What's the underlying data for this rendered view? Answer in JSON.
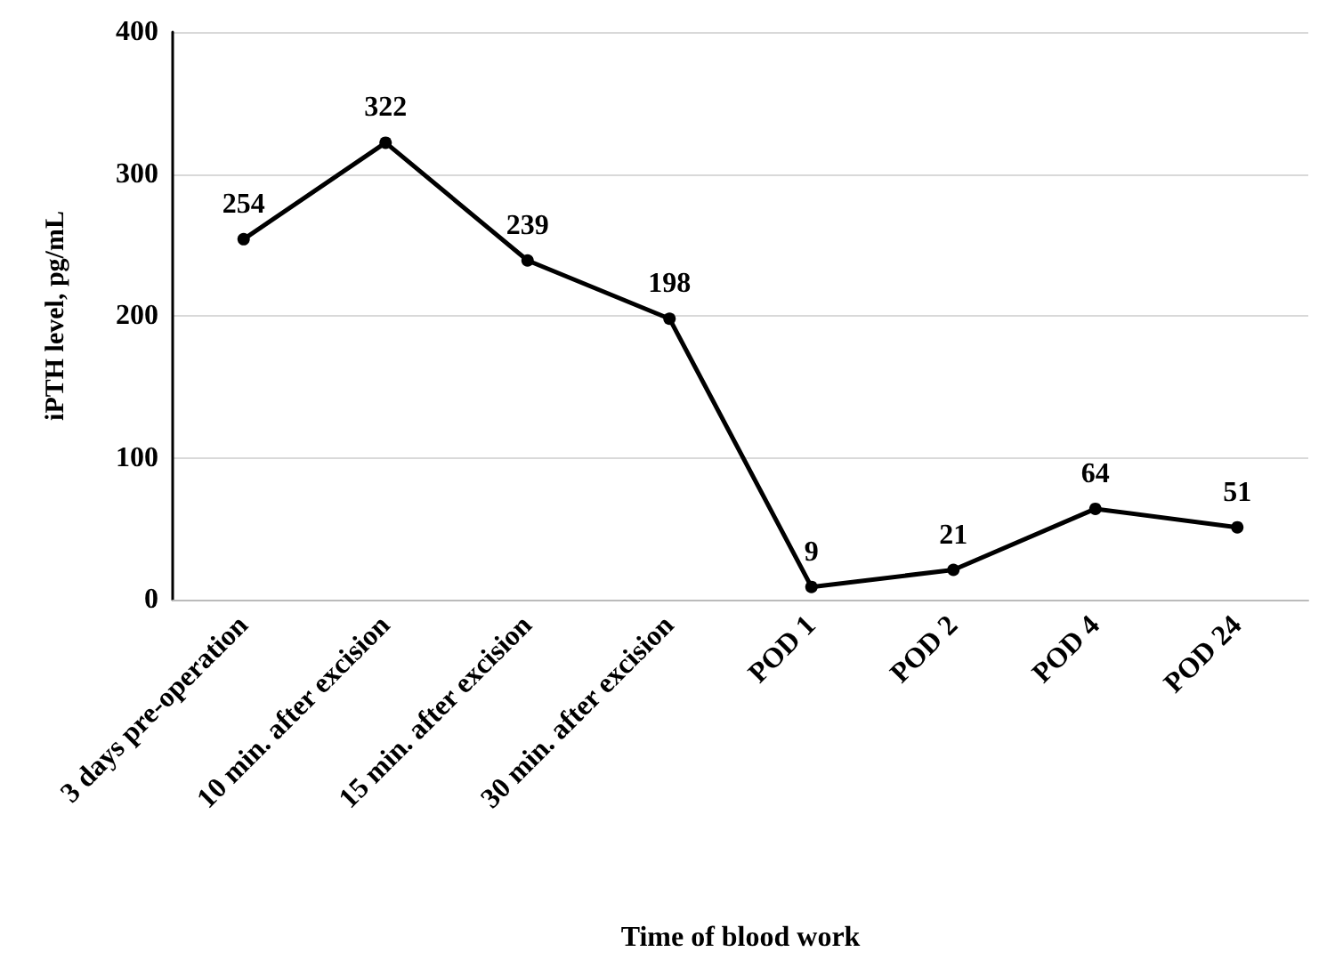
{
  "chart_data": {
    "type": "line",
    "xlabel": "Time of blood work",
    "ylabel": "iPTH level, pg/mL",
    "categories": [
      "3 days pre-operation",
      "10 min. after excision",
      "15 min. after excision",
      "30 min. after excision",
      "POD 1",
      "POD 2",
      "POD 4",
      "POD 24"
    ],
    "series": [
      {
        "color": "#000000",
        "values": [
          254,
          322,
          239,
          198,
          9,
          21,
          64,
          51
        ]
      }
    ],
    "ylim": [
      0,
      400
    ],
    "yticks": [
      0,
      100,
      200,
      300,
      400
    ],
    "grid": "y",
    "marker": "circle",
    "line_style": "solid",
    "data_labels": true
  }
}
